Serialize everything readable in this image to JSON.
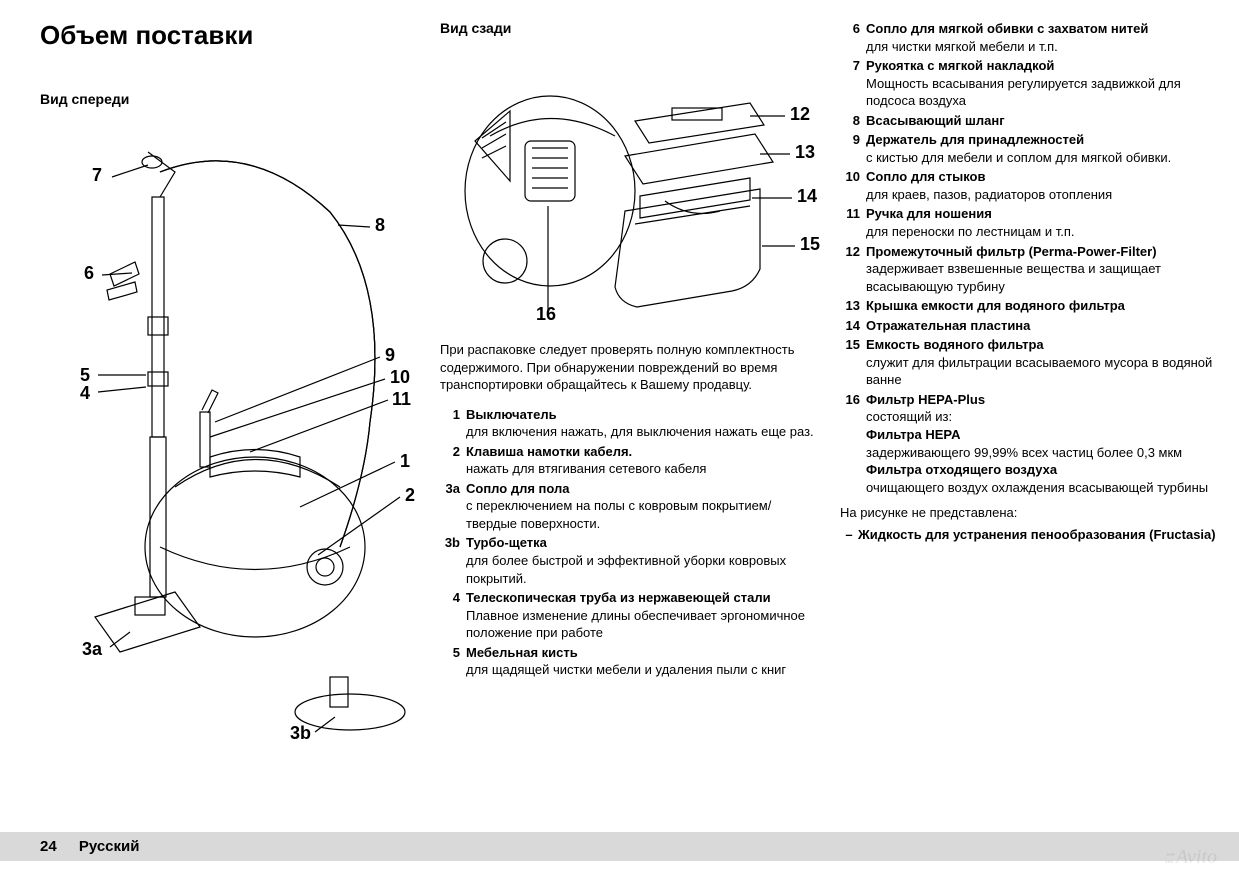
{
  "heading": "Объем поставки",
  "front_label": "Вид спереди",
  "rear_label": "Вид сзади",
  "intro": "При распаковке следует проверять полную комплектность содержимого. При обнаружении повреждений во время транспортировки обращайтесь к Вашему продавцу.",
  "items_col2": [
    {
      "n": "1",
      "t": "Выключатель",
      "d": "для включения нажать, для выключения нажать еще раз."
    },
    {
      "n": "2",
      "t": "Клавиша намотки кабеля.",
      "d": "нажать для втягивания сетевого кабеля"
    },
    {
      "n": "3a",
      "t": "Сопло для пола",
      "d": "с переключением на полы с ковровым покрытием/твердые поверхности."
    },
    {
      "n": "3b",
      "t": "Турбо-щетка",
      "d": "для более быстрой и эффективной уборки ковровых покрытий."
    },
    {
      "n": "4",
      "t": "Телескопическая труба из нержавеющей стали",
      "d": "Плавное изменение длины обеспечивает эргономичное положение при работе"
    },
    {
      "n": "5",
      "t": "Мебельная кисть",
      "d": "для щадящей чистки мебели и удаления пыли с книг"
    }
  ],
  "items_col3": [
    {
      "n": "6",
      "t": "Сопло для мягкой обивки с захватом нитей",
      "d": "для чистки мягкой мебели и т.п."
    },
    {
      "n": "7",
      "t": "Рукоятка с мягкой накладкой",
      "d": "Мощность всасывания регулируется задвижкой для подсоса воздуха"
    },
    {
      "n": "8",
      "t": "Всасывающий шланг",
      "d": ""
    },
    {
      "n": "9",
      "t": "Держатель для принадлежностей",
      "d": "с кистью для мебели и соплом для мягкой обивки."
    },
    {
      "n": "10",
      "t": "Сопло для стыков",
      "d": "для краев, пазов, радиаторов отопления"
    },
    {
      "n": "11",
      "t": "Ручка для ношения",
      "d": "для переноски по лестницам и т.п."
    },
    {
      "n": "12",
      "t_html": "Промежуточный фильтр (<span style='font-family:\"Arial Black\",Arial;font-weight:900'>Perma-Power-Filter</span>)",
      "d": "задерживает взвешенные вещества и защищает всасывающую турбину"
    },
    {
      "n": "13",
      "t": "Крышка емкости для водяного фильтра",
      "d": ""
    },
    {
      "n": "14",
      "t": "Отражательная пластина",
      "d": ""
    },
    {
      "n": "15",
      "t": "Емкость водяного фильтра",
      "d": "служит для фильтрации всасываемого мусора в водяной ванне"
    },
    {
      "n": "16",
      "t": "Фильтр HEPA-Plus",
      "d_html": "состоящий из:<br><b>Фильтра HEPA</b><br>задерживающего 99,99% всех частиц более 0,3 мкм<br><b>Фильтра отходящего воздуха</b><br>очищающего воздух охлаждения всасывающей турбины"
    }
  ],
  "not_shown_label": "На рисунке не представлена:",
  "not_shown_item": "Жидкость для устранения пенообразования (Fructasia)",
  "page_number": "24",
  "language": "Русский",
  "watermark": "Avito",
  "front_callouts": {
    "7": "7",
    "8": "8",
    "6": "6",
    "9": "9",
    "10": "10",
    "5": "5",
    "4": "4",
    "11": "11",
    "1": "1",
    "2": "2",
    "3a": "3a",
    "3b": "3b"
  },
  "rear_callouts": {
    "12": "12",
    "13": "13",
    "14": "14",
    "15": "15",
    "16": "16"
  },
  "colors": {
    "text": "#000000",
    "footer_bg": "#d9d9d9",
    "diagram_stroke": "#000000",
    "diagram_fill": "#ffffff",
    "watermark": "rgba(0,0,0,0.08)"
  }
}
